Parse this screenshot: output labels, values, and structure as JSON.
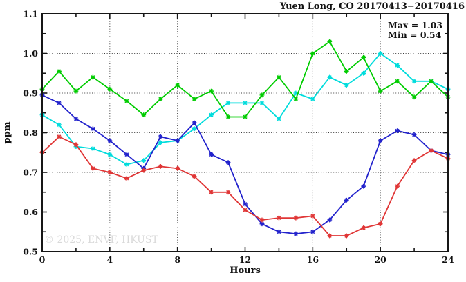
{
  "title": "Yuen Long, CO 20170413−20170416",
  "annotation": {
    "max_label": "Max = 1.03",
    "min_label": "Min = 0.54"
  },
  "watermark": "© 2025, ENVF, HKUST",
  "chart_data": {
    "type": "line",
    "title": "Yuen Long, CO 20170413−20170416",
    "xlabel": "Hours",
    "ylabel": "ppm",
    "xlim": [
      0,
      24
    ],
    "ylim": [
      0.5,
      1.1
    ],
    "grid": {
      "x_values": [
        4,
        8,
        12,
        16,
        20
      ],
      "y_values": [
        0.6,
        0.7,
        0.8,
        0.9,
        1.0
      ]
    },
    "x_tick_values": [
      0,
      4,
      8,
      12,
      16,
      20,
      24
    ],
    "x_tick_labels": [
      "0",
      "4",
      "8",
      "12",
      "16",
      "20",
      "24"
    ],
    "x_minor_ticks": [
      2,
      6,
      10,
      14,
      18,
      22
    ],
    "y_tick_values": [
      0.5,
      0.6,
      0.7,
      0.8,
      0.9,
      1.0,
      1.1
    ],
    "y_tick_labels": [
      "0.5",
      "0.6",
      "0.7",
      "0.8",
      "0.9",
      "1.0",
      "1.1"
    ],
    "y_minor_ticks": [
      0.55,
      0.65,
      0.75,
      0.85,
      0.95,
      1.05
    ],
    "legend_position": "none",
    "marker": "asterisk",
    "max": 1.03,
    "min": 0.54,
    "x": [
      0,
      1,
      2,
      3,
      4,
      5,
      6,
      7,
      8,
      9,
      10,
      11,
      12,
      13,
      14,
      15,
      16,
      17,
      18,
      19,
      20,
      21,
      22,
      23,
      24
    ],
    "series": [
      {
        "name": "cyan-series",
        "color": "#00dcdc",
        "values": [
          0.845,
          0.82,
          0.765,
          0.76,
          0.745,
          0.72,
          0.73,
          0.775,
          0.78,
          0.81,
          0.845,
          0.875,
          0.875,
          0.875,
          0.835,
          0.9,
          0.885,
          0.94,
          0.92,
          0.95,
          1.0,
          0.97,
          0.93,
          0.93,
          0.91
        ]
      },
      {
        "name": "blue-series",
        "color": "#2222cc",
        "values": [
          0.895,
          0.875,
          0.835,
          0.81,
          0.78,
          0.745,
          0.71,
          0.79,
          0.78,
          0.825,
          0.745,
          0.725,
          0.62,
          0.57,
          0.55,
          0.545,
          0.55,
          0.58,
          0.63,
          0.665,
          0.78,
          0.805,
          0.795,
          0.755,
          0.745
        ]
      },
      {
        "name": "green-series",
        "color": "#00cc00",
        "values": [
          0.91,
          0.955,
          0.905,
          0.94,
          0.91,
          0.88,
          0.845,
          0.885,
          0.92,
          0.885,
          0.905,
          0.84,
          0.84,
          0.895,
          0.94,
          0.885,
          1.0,
          1.03,
          0.955,
          0.99,
          0.905,
          0.93,
          0.89,
          0.93,
          0.89
        ]
      },
      {
        "name": "red-series",
        "color": "#e03636",
        "values": [
          0.75,
          0.79,
          0.77,
          0.71,
          0.7,
          0.685,
          0.705,
          0.715,
          0.71,
          0.69,
          0.65,
          0.65,
          0.605,
          0.58,
          0.585,
          0.585,
          0.59,
          0.54,
          0.54,
          0.56,
          0.57,
          0.665,
          0.73,
          0.755,
          0.735
        ]
      }
    ]
  }
}
